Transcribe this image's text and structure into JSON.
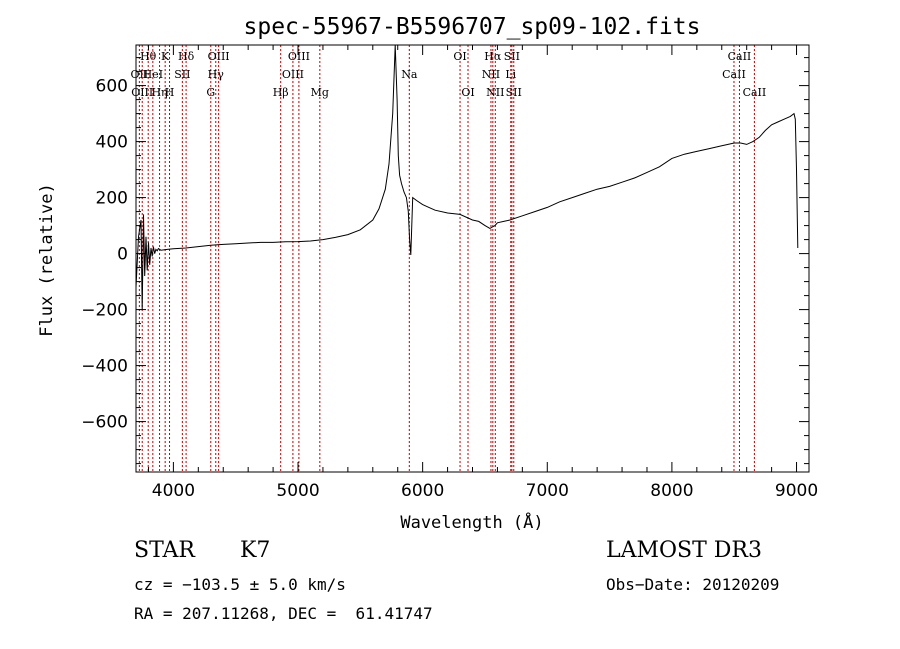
{
  "chart_data": {
    "type": "line",
    "title": "spec-55967-B5596707_sp09-102.fits",
    "xlabel": "Wavelength (Å)",
    "ylabel": "Flux (relative)",
    "xlim": [
      3700,
      9100
    ],
    "ylim": [
      -780,
      745
    ],
    "x_ticks": [
      4000,
      5000,
      6000,
      7000,
      8000,
      9000
    ],
    "y_ticks": [
      -600,
      -400,
      -200,
      0,
      200,
      400,
      600
    ],
    "grid": false,
    "series": [
      {
        "name": "flux",
        "x": [
          3700,
          3720,
          3740,
          3750,
          3760,
          3770,
          3780,
          3790,
          3800,
          3810,
          3820,
          3830,
          3840,
          3850,
          3860,
          3870,
          3880,
          3900,
          3950,
          4000,
          4100,
          4200,
          4300,
          4400,
          4500,
          4600,
          4700,
          4800,
          4900,
          5000,
          5100,
          5200,
          5300,
          5400,
          5500,
          5600,
          5650,
          5700,
          5730,
          5760,
          5780,
          5795,
          5805,
          5815,
          5830,
          5850,
          5870,
          5885,
          5895,
          5905,
          5920,
          5950,
          6000,
          6050,
          6100,
          6200,
          6300,
          6400,
          6450,
          6500,
          6540,
          6560,
          6580,
          6600,
          6650,
          6700,
          6800,
          6900,
          7000,
          7100,
          7200,
          7300,
          7400,
          7500,
          7600,
          7700,
          7800,
          7900,
          8000,
          8100,
          8200,
          8300,
          8400,
          8500,
          8550,
          8600,
          8650,
          8700,
          8750,
          8800,
          8850,
          8900,
          8950,
          8980,
          8990,
          9000,
          9010
        ],
        "y": [
          -120,
          60,
          120,
          -200,
          140,
          -80,
          60,
          -60,
          40,
          -40,
          20,
          -10,
          25,
          0,
          15,
          10,
          18,
          12,
          15,
          17,
          20,
          25,
          30,
          33,
          35,
          38,
          40,
          40,
          42,
          43,
          45,
          50,
          58,
          68,
          85,
          120,
          160,
          230,
          320,
          500,
          745,
          550,
          350,
          280,
          250,
          220,
          200,
          150,
          50,
          -5,
          200,
          190,
          175,
          165,
          155,
          145,
          140,
          120,
          115,
          100,
          90,
          95,
          100,
          110,
          115,
          120,
          135,
          150,
          165,
          185,
          200,
          215,
          230,
          240,
          255,
          270,
          290,
          310,
          340,
          355,
          365,
          375,
          385,
          395,
          395,
          390,
          400,
          415,
          440,
          460,
          470,
          480,
          490,
          500,
          480,
          300,
          20
        ]
      }
    ],
    "lines": [
      {
        "wavelength": 3727,
        "label": "OII",
        "row": 1
      },
      {
        "wavelength": 3750,
        "label": "OIII",
        "row": 2
      },
      {
        "wavelength": 3798,
        "label": "Hθ",
        "row": 0
      },
      {
        "wavelength": 3835,
        "label": "HeI",
        "row": 1
      },
      {
        "wavelength": 3889,
        "label": "Hη",
        "row": 2
      },
      {
        "wavelength": 3934,
        "label": "K",
        "row": 0
      },
      {
        "wavelength": 3969,
        "label": "H",
        "row": 2
      },
      {
        "wavelength": 4072,
        "label": "SII",
        "row": 1
      },
      {
        "wavelength": 4102,
        "label": "Hδ",
        "row": 0
      },
      {
        "wavelength": 4300,
        "label": "G",
        "row": 2
      },
      {
        "wavelength": 4340,
        "label": "Hγ",
        "row": 1
      },
      {
        "wavelength": 4363,
        "label": "OIII",
        "row": 0
      },
      {
        "wavelength": 4861,
        "label": "Hβ",
        "row": 2
      },
      {
        "wavelength": 4959,
        "label": "OIII",
        "row": 1
      },
      {
        "wavelength": 5007,
        "label": "OIII",
        "row": 0
      },
      {
        "wavelength": 5175,
        "label": "Mg",
        "row": 2
      },
      {
        "wavelength": 5893,
        "label": "Na",
        "row": 1
      },
      {
        "wavelength": 6300,
        "label": "OI",
        "row": 0
      },
      {
        "wavelength": 6364,
        "label": "OI",
        "row": 2
      },
      {
        "wavelength": 6548,
        "label": "NII",
        "row": 1
      },
      {
        "wavelength": 6563,
        "label": "Hα",
        "row": 0
      },
      {
        "wavelength": 6583,
        "label": "NII",
        "row": 2
      },
      {
        "wavelength": 6707,
        "label": "Li",
        "row": 1
      },
      {
        "wavelength": 6716,
        "label": "SII",
        "row": 0
      },
      {
        "wavelength": 6731,
        "label": "SII",
        "row": 2
      },
      {
        "wavelength": 8498,
        "label": "CaII",
        "row": 1
      },
      {
        "wavelength": 8542,
        "label": "CaII",
        "row": 0
      },
      {
        "wavelength": 8662,
        "label": "CaII",
        "row": 2
      }
    ]
  },
  "info": {
    "obj_class": "STAR",
    "subclass": "K7",
    "survey": "LAMOST DR3",
    "cz": "cz = −103.5 ± 5.0 km/s",
    "obs_date": "Obs−Date: 20120209",
    "coords": "RA = 207.11268, DEC =  61.41747"
  },
  "colors": {
    "axis": "#000000",
    "flux_line": "#000000",
    "line_markers": "#c00000"
  }
}
